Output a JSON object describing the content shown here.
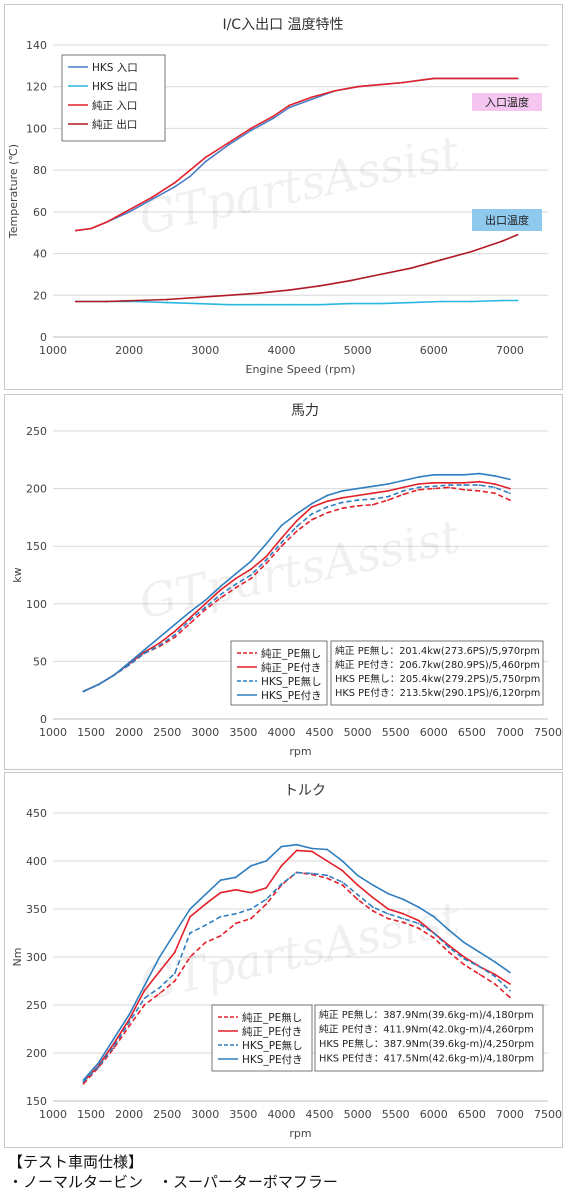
{
  "chart_data": [
    {
      "type": "line",
      "title": "I/C入出口 温度特性",
      "xlabel": "Engine Speed (rpm)",
      "ylabel": "Temperature (℃)",
      "xlim": [
        1000,
        7500
      ],
      "ylim": [
        0,
        140
      ],
      "xticks": [
        1000,
        2000,
        3000,
        4000,
        5000,
        6000,
        7000
      ],
      "yticks": [
        0,
        20,
        40,
        60,
        80,
        100,
        120,
        140
      ],
      "grid": true,
      "legend_position": "top-left",
      "annotations": [
        {
          "text": "入口温度",
          "color": "#f4c6f0"
        },
        {
          "text": "出口温度",
          "color": "#8fc9ee"
        }
      ],
      "watermark": "GTpartsAssist",
      "series": [
        {
          "name": "HKS 入口",
          "color": "#4a7ec7",
          "style": "solid",
          "x": [
            1300,
            1500,
            1700,
            2000,
            2300,
            2600,
            2800,
            3000,
            3300,
            3600,
            3900,
            4100,
            4400,
            4700,
            5000,
            5300,
            5600,
            6000,
            6400,
            6800,
            7100
          ],
          "y": [
            51,
            52,
            55,
            60,
            66,
            72,
            77,
            84,
            92,
            99,
            105,
            110,
            114,
            118,
            120,
            121,
            122,
            124,
            124,
            124,
            124
          ]
        },
        {
          "name": "HKS 出口",
          "color": "#29b6e3",
          "style": "solid",
          "x": [
            1300,
            1700,
            2100,
            2500,
            2900,
            3300,
            3700,
            4100,
            4500,
            4900,
            5300,
            5700,
            6100,
            6500,
            6900,
            7100
          ],
          "y": [
            17,
            17,
            17,
            16.5,
            16,
            15.5,
            15.5,
            15.5,
            15.5,
            16,
            16,
            16.5,
            17,
            17,
            17.5,
            17.5
          ]
        },
        {
          "name": "純正 入口",
          "color": "#e3202a",
          "style": "solid",
          "x": [
            1300,
            1500,
            1700,
            2000,
            2300,
            2600,
            2800,
            3000,
            3300,
            3600,
            3900,
            4100,
            4400,
            4700,
            5000,
            5300,
            5600,
            6000,
            6400,
            6800,
            7100
          ],
          "y": [
            51,
            52,
            55,
            61,
            67,
            74,
            80,
            86,
            93,
            100,
            106,
            111,
            115,
            118,
            120,
            121,
            122,
            124,
            124,
            124,
            124
          ]
        },
        {
          "name": "純正 出口",
          "color": "#b01c25",
          "style": "solid",
          "x": [
            1300,
            1700,
            2100,
            2500,
            2900,
            3300,
            3700,
            4100,
            4500,
            4900,
            5300,
            5700,
            6100,
            6500,
            6900,
            7100
          ],
          "y": [
            17,
            17,
            17.5,
            18,
            19,
            20,
            21,
            22.5,
            24.5,
            27,
            30,
            33,
            37,
            41,
            46,
            49
          ]
        }
      ]
    },
    {
      "type": "line",
      "title": "馬力",
      "xlabel": "rpm",
      "ylabel": "kw",
      "xlim": [
        1000,
        7500
      ],
      "ylim": [
        0,
        250
      ],
      "xticks": [
        1000,
        1500,
        2000,
        2500,
        3000,
        3500,
        4000,
        4500,
        5000,
        5500,
        6000,
        6500,
        7000,
        7500
      ],
      "yticks": [
        0,
        50,
        100,
        150,
        200,
        250
      ],
      "grid": true,
      "legend_position": "bottom-right",
      "watermark": "GTpartsAssist",
      "series": [
        {
          "name": "純正_PE無し",
          "color": "#e3202a",
          "style": "dashed",
          "x": [
            1400,
            1600,
            1800,
            2000,
            2200,
            2400,
            2600,
            2800,
            3000,
            3200,
            3400,
            3600,
            3800,
            4000,
            4200,
            4400,
            4600,
            4800,
            5000,
            5200,
            5400,
            5600,
            5800,
            6000,
            6200,
            6400,
            6600,
            6800,
            7000
          ],
          "y": [
            24,
            30,
            38,
            47,
            57,
            63,
            71,
            83,
            95,
            105,
            114,
            122,
            135,
            150,
            163,
            173,
            179,
            183,
            185,
            186,
            190,
            195,
            199,
            200,
            201,
            199,
            198,
            196,
            190
          ]
        },
        {
          "name": "純正_PE付き",
          "color": "#e3202a",
          "style": "solid",
          "x": [
            1400,
            1600,
            1800,
            2000,
            2200,
            2400,
            2600,
            2800,
            3000,
            3200,
            3400,
            3600,
            3800,
            4000,
            4200,
            4400,
            4600,
            4800,
            5000,
            5200,
            5400,
            5600,
            5800,
            6000,
            6200,
            6400,
            6600,
            6800,
            7000
          ],
          "y": [
            24,
            30,
            38,
            48,
            58,
            66,
            76,
            88,
            100,
            112,
            122,
            130,
            141,
            157,
            172,
            184,
            189,
            192,
            194,
            196,
            198,
            201,
            204,
            205,
            205,
            205,
            206,
            204,
            200
          ]
        },
        {
          "name": "HKS_PE無し",
          "color": "#2f7ec0",
          "style": "dashed",
          "x": [
            1400,
            1600,
            1800,
            2000,
            2200,
            2400,
            2600,
            2800,
            3000,
            3200,
            3400,
            3600,
            3800,
            4000,
            4200,
            4400,
            4600,
            4800,
            5000,
            5200,
            5400,
            5600,
            5800,
            6000,
            6200,
            6400,
            6600,
            6800,
            7000
          ],
          "y": [
            24,
            30,
            38,
            47,
            57,
            64,
            73,
            86,
            97,
            108,
            117,
            125,
            138,
            153,
            167,
            178,
            184,
            188,
            190,
            191,
            193,
            198,
            201,
            202,
            203,
            203,
            203,
            201,
            196
          ]
        },
        {
          "name": "HKS_PE付き",
          "color": "#2f7ec0",
          "style": "solid",
          "x": [
            1400,
            1600,
            1800,
            2000,
            2200,
            2400,
            2600,
            2800,
            3000,
            3200,
            3400,
            3600,
            3800,
            4000,
            4200,
            4400,
            4600,
            4800,
            5000,
            5200,
            5400,
            5600,
            5800,
            6000,
            6200,
            6400,
            6600,
            6800,
            7000
          ],
          "y": [
            24,
            30,
            38,
            49,
            60,
            71,
            82,
            93,
            103,
            115,
            126,
            137,
            152,
            168,
            178,
            187,
            194,
            198,
            200,
            202,
            204,
            207,
            210,
            212,
            212,
            212,
            213,
            211,
            208
          ]
        }
      ],
      "summary": [
        "純正 PE無し：201.4kw(273.6PS)/5,970rpm",
        "純正 PE付き：206.7kw(280.9PS)/5,460rpm",
        "HKS PE無し：205.4kw(279.2PS)/5,750rpm",
        "HKS PE付き：213.5kw(290.1PS)/6,120rpm"
      ]
    },
    {
      "type": "line",
      "title": "トルク",
      "xlabel": "rpm",
      "ylabel": "Nm",
      "xlim": [
        1000,
        7500
      ],
      "ylim": [
        150,
        450
      ],
      "xticks": [
        1000,
        1500,
        2000,
        2500,
        3000,
        3500,
        4000,
        4500,
        5000,
        5500,
        6000,
        6500,
        7000,
        7500
      ],
      "yticks": [
        150,
        200,
        250,
        300,
        350,
        400,
        450
      ],
      "grid": true,
      "legend_position": "bottom-right",
      "watermark": "GTpartsAssist",
      "series": [
        {
          "name": "純正_PE無し",
          "color": "#e3202a",
          "style": "dashed",
          "x": [
            1400,
            1600,
            1800,
            2000,
            2200,
            2400,
            2600,
            2800,
            3000,
            3200,
            3400,
            3600,
            3800,
            4000,
            4200,
            4400,
            4600,
            4800,
            5000,
            5200,
            5400,
            5600,
            5800,
            6000,
            6200,
            6400,
            6600,
            6800,
            7000
          ],
          "y": [
            168,
            185,
            205,
            228,
            250,
            262,
            275,
            300,
            315,
            322,
            335,
            340,
            355,
            375,
            388,
            386,
            382,
            375,
            360,
            348,
            340,
            336,
            330,
            320,
            305,
            292,
            282,
            272,
            258
          ]
        },
        {
          "name": "純正_PE付き",
          "color": "#e3202a",
          "style": "solid",
          "x": [
            1400,
            1600,
            1800,
            2000,
            2200,
            2400,
            2600,
            2800,
            3000,
            3200,
            3400,
            3600,
            3800,
            4000,
            4200,
            4400,
            4600,
            4800,
            5000,
            5200,
            5400,
            5600,
            5800,
            6000,
            6200,
            6400,
            6600,
            6800,
            7000
          ],
          "y": [
            170,
            187,
            210,
            235,
            265,
            285,
            305,
            342,
            355,
            367,
            370,
            367,
            372,
            395,
            411,
            410,
            400,
            390,
            375,
            362,
            350,
            345,
            338,
            325,
            312,
            300,
            290,
            282,
            272
          ]
        },
        {
          "name": "HKS_PE無し",
          "color": "#2f7ec0",
          "style": "dashed",
          "x": [
            1400,
            1600,
            1800,
            2000,
            2200,
            2400,
            2600,
            2800,
            3000,
            3200,
            3400,
            3600,
            3800,
            4000,
            4200,
            4400,
            4600,
            4800,
            5000,
            5200,
            5400,
            5600,
            5800,
            6000,
            6200,
            6400,
            6600,
            6800,
            7000
          ],
          "y": [
            170,
            186,
            207,
            232,
            257,
            268,
            283,
            325,
            333,
            342,
            345,
            350,
            360,
            376,
            388,
            387,
            385,
            378,
            365,
            352,
            345,
            340,
            335,
            325,
            310,
            298,
            290,
            280,
            265
          ]
        },
        {
          "name": "HKS_PE付き",
          "color": "#2f7ec0",
          "style": "solid",
          "x": [
            1400,
            1600,
            1800,
            2000,
            2200,
            2400,
            2600,
            2800,
            3000,
            3200,
            3400,
            3600,
            3800,
            4000,
            4200,
            4400,
            4600,
            4800,
            5000,
            5200,
            5400,
            5600,
            5800,
            6000,
            6200,
            6400,
            6600,
            6800,
            7000
          ],
          "y": [
            172,
            190,
            215,
            240,
            270,
            300,
            325,
            350,
            365,
            380,
            383,
            395,
            400,
            415,
            417,
            413,
            412,
            400,
            385,
            375,
            366,
            360,
            352,
            342,
            328,
            315,
            305,
            295,
            284
          ]
        }
      ],
      "summary": [
        "純正 PE無し：387.9Nm(39.6kg-m)/4,180rpm",
        "純正 PE付き：411.9Nm(42.0kg-m)/4,260rpm",
        "HKS PE無し：387.9Nm(39.6kg-m)/4,250rpm",
        "HKS PE付き：417.5Nm(42.6kg-m)/4,180rpm"
      ]
    }
  ],
  "footer": {
    "heading": "【テスト車両仕様】",
    "items": "・ノーマルタービン　・スーパーターボマフラー"
  }
}
